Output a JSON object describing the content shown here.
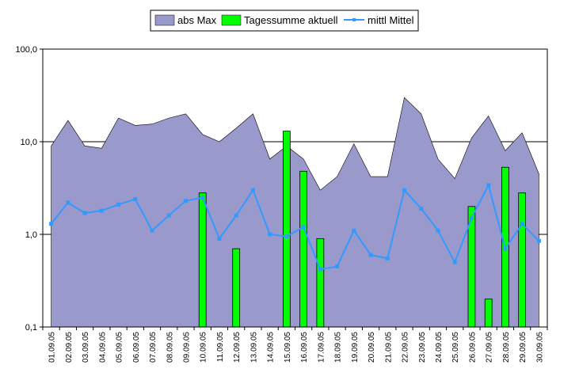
{
  "chart_data": {
    "type": "bar",
    "scale": "log",
    "ylim": [
      0.1,
      100
    ],
    "yticks": [
      "0,1",
      "1,0",
      "10,0",
      "100,0"
    ],
    "grid": "horizontal",
    "legend_position": "top-center",
    "categories": [
      "01.09.05",
      "02.09.05",
      "03.09.05",
      "04.09.05",
      "05.09.05",
      "06.09.05",
      "07.09.05",
      "08.09.05",
      "09.09.05",
      "10.09.05",
      "11.09.05",
      "12.09.05",
      "13.09.05",
      "14.09.05",
      "15.09.05",
      "16.09.05",
      "17.09.05",
      "18.09.05",
      "19.09.05",
      "20.09.05",
      "21.09.05",
      "22.09.05",
      "23.09.05",
      "24.09.05",
      "25.09.05",
      "26.09.05",
      "27.09.05",
      "28.09.05",
      "29.09.05",
      "30.09.05"
    ],
    "series": [
      {
        "name": "abs Max",
        "kind": "area",
        "color": "#9999cc",
        "values": [
          9,
          17,
          9,
          8.5,
          18,
          15,
          15.5,
          18,
          20,
          12,
          10,
          14,
          20,
          6.5,
          9,
          6.5,
          3,
          4.2,
          9.5,
          4.2,
          4.2,
          30,
          20,
          6.5,
          4,
          11,
          19,
          8,
          12.5,
          4.5
        ]
      },
      {
        "name": "Tagessumme aktuell",
        "kind": "bar",
        "color": "#00ff00",
        "values": [
          0,
          0,
          0,
          0,
          0,
          0,
          0,
          0,
          0,
          2.8,
          0,
          0.7,
          0,
          0,
          13,
          4.8,
          0.9,
          0,
          0,
          0,
          0,
          0,
          0,
          0,
          0,
          2,
          0.2,
          5.3,
          2.8,
          0
        ]
      },
      {
        "name": "mittl Mittel",
        "kind": "line",
        "color": "#3399ff",
        "values": [
          1.3,
          2.2,
          1.7,
          1.8,
          2.1,
          2.4,
          1.1,
          1.6,
          2.3,
          2.5,
          0.9,
          1.6,
          3.0,
          1.0,
          0.95,
          1.2,
          0.42,
          0.45,
          1.1,
          0.6,
          0.55,
          3.0,
          1.9,
          1.1,
          0.5,
          1.5,
          3.4,
          0.7,
          1.3,
          0.85
        ]
      }
    ]
  }
}
